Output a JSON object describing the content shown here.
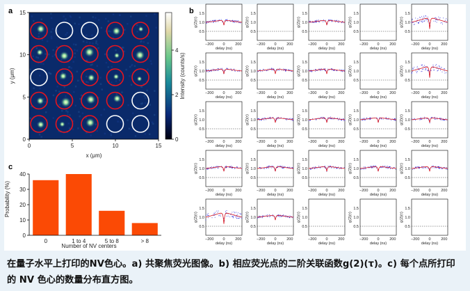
{
  "panels": {
    "a": {
      "letter": "a",
      "xlabel": "x (μm)",
      "ylabel": "y (μm)",
      "xticks": [
        "0",
        "5",
        "10",
        "15"
      ],
      "yticks": [
        "0",
        "5",
        "10",
        "15"
      ],
      "colorbar_label": "Intensity (counts/s)",
      "colorbar_ticks": [
        "0",
        "2",
        "4"
      ],
      "colors": {
        "background": "#0a2a6a",
        "red_circle": "#e8141e",
        "white_circle": "#ffffff"
      },
      "grid_rows": 5,
      "grid_cols": 5,
      "circle_pattern": [
        [
          "red",
          "white",
          "white",
          "red",
          "red"
        ],
        [
          "red",
          "red",
          "red",
          "red",
          "red"
        ],
        [
          "white",
          "red",
          "red",
          "red",
          "red"
        ],
        [
          "red",
          "red",
          "red",
          "red",
          "white"
        ],
        [
          "red",
          "red",
          "red",
          "white",
          "white"
        ]
      ]
    },
    "b": {
      "letter": "b",
      "xlabel": "delay (ns)",
      "ylabel": "g(2)(τ)",
      "xticks": [
        "−200",
        "0",
        "200"
      ],
      "yticks": [
        "0.5",
        "1.0",
        "1.5"
      ],
      "colors": {
        "data": "#2a2adc",
        "fit": "#d8141e",
        "threshold": "#333333"
      },
      "grid_rows": 5,
      "grid_cols": 5,
      "cells": [
        [
          "dip",
          "empty",
          "dip",
          "empty",
          "strong"
        ],
        [
          "dip",
          "dip",
          "dip",
          "empty",
          "strong"
        ],
        [
          "empty",
          "dip",
          "dip",
          "dip",
          "dip"
        ],
        [
          "dip",
          "dip",
          "dip",
          "dip",
          "dip"
        ],
        [
          "strong",
          "dip",
          "empty",
          "empty",
          "empty"
        ]
      ]
    },
    "c": {
      "letter": "c",
      "chart_data": {
        "type": "bar",
        "categories": [
          "0",
          "1 to 4",
          "5 to 8",
          "> 8"
        ],
        "values": [
          36,
          40,
          16,
          8
        ],
        "xlabel": "Number of NV centers",
        "ylabel": "Probability (%)",
        "ylim": [
          0,
          40
        ],
        "yticks": [
          "0",
          "10",
          "20",
          "30",
          "40"
        ],
        "bar_color": "#fb4a05"
      }
    }
  },
  "caption": "在量子水平上打印的NV色心。a) 共聚焦荧光图像。b) 相应荧光点的二阶关联函数g(2)(τ)。c) 每个点所打印的 NV 色心的数量分布直方图。"
}
